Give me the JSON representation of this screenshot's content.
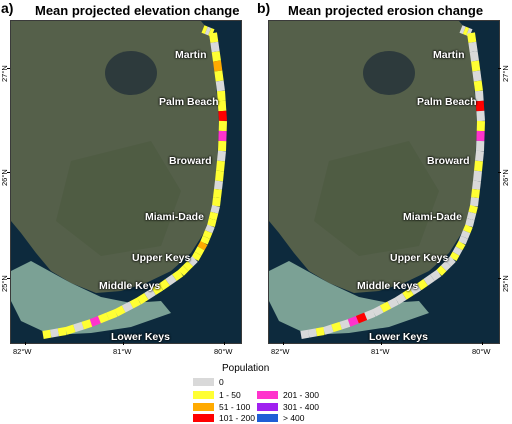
{
  "panels": [
    {
      "letter": "a)",
      "title": "Mean projected elevation change"
    },
    {
      "letter": "b)",
      "title": "Mean projected erosion change"
    }
  ],
  "regions": [
    "Martin",
    "Palm Beach",
    "Broward",
    "Miami-Dade",
    "Upper Keys",
    "Middle Keys",
    "Lower Keys"
  ],
  "longitudes": [
    "82°W",
    "81°W",
    "80°W"
  ],
  "latitudes": [
    "27°N",
    "26°N",
    "25°N"
  ],
  "legend": {
    "title": "Population",
    "items": [
      {
        "label": "0",
        "color": "#d9d9d9"
      },
      {
        "label": "1 - 50",
        "color": "#ffff33"
      },
      {
        "label": "51 - 100",
        "color": "#ffaa00"
      },
      {
        "label": "101 - 200",
        "color": "#ff0000"
      },
      {
        "label": "201 - 300",
        "color": "#ff33cc"
      },
      {
        "label": "301 - 400",
        "color": "#a020f0"
      },
      {
        "label": "> 400",
        "color": "#1f5fd6"
      }
    ]
  },
  "colors": {
    "land": "#55604a",
    "water": "#0d2a3d",
    "shallow_water": "#8fb6a4"
  }
}
